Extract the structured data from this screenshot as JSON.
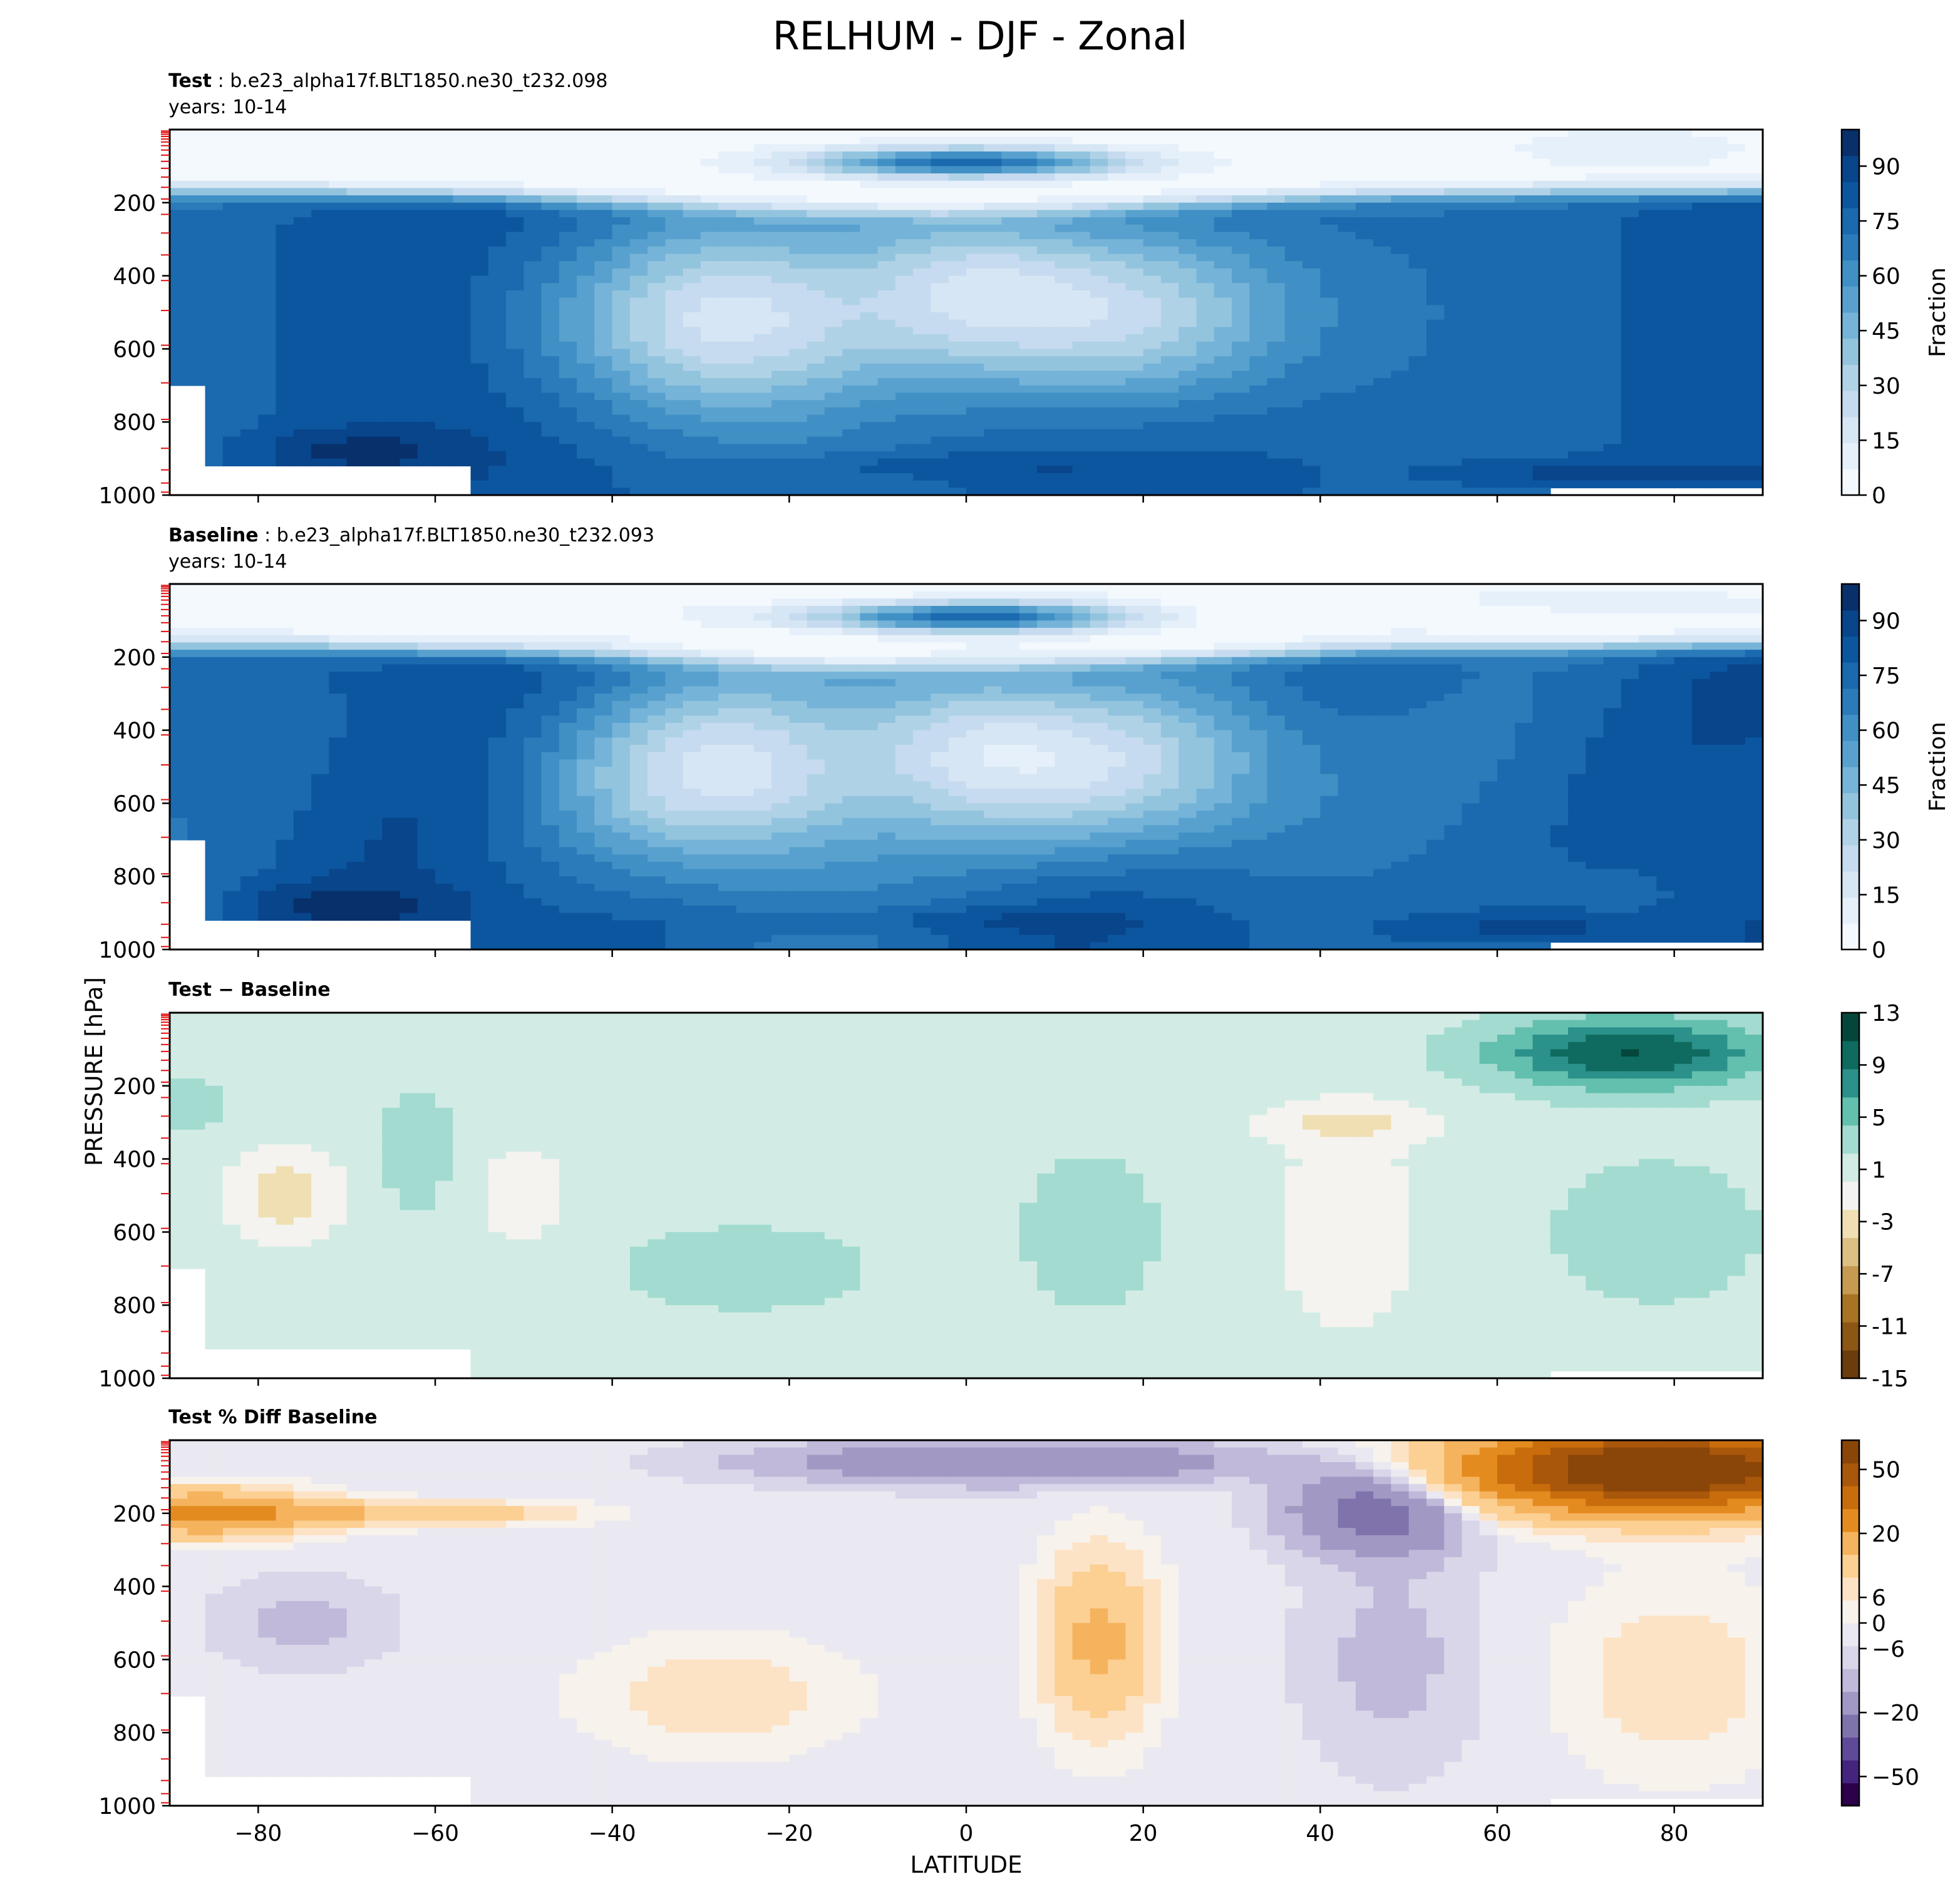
{
  "figure": {
    "title": "RELHUM - DJF - Zonal",
    "ylabel": "PRESSURE [hPa]",
    "xlabel": "LATITUDE"
  },
  "chart_data": [
    {
      "type": "contour",
      "name": "test",
      "title_bold": "Test",
      "title_rest": " : b.e23_alpha17f.BLT1850.ne30_t232.098",
      "subtitle": "years: 10-14",
      "xlim": [
        -90,
        90
      ],
      "ylim": [
        1000,
        0
      ],
      "x_ticks": [
        -80,
        -60,
        -40,
        -20,
        0,
        20,
        40,
        60,
        80
      ],
      "x_tick_labels_shown": false,
      "y_ticks": [
        200,
        400,
        600,
        800,
        1000
      ],
      "colormap": "Blues",
      "colorbar": {
        "label": "Fraction",
        "ticks": [
          0,
          15,
          30,
          45,
          60,
          75,
          90
        ],
        "range": [
          0,
          100
        ],
        "colors": [
          "#f4f9fe",
          "#e6f0fa",
          "#d6e6f4",
          "#c6dbef",
          "#b0d2e7",
          "#93c4de",
          "#75b4d8",
          "#58a1cf",
          "#4090c5",
          "#2b7bba",
          "#1b69af",
          "#0c56a0",
          "#08458a",
          "#08306b"
        ]
      }
    },
    {
      "type": "contour",
      "name": "baseline",
      "title_bold": "Baseline",
      "title_rest": " : b.e23_alpha17f.BLT1850.ne30_t232.093",
      "subtitle": "years: 10-14",
      "xlim": [
        -90,
        90
      ],
      "ylim": [
        1000,
        0
      ],
      "x_ticks": [
        -80,
        -60,
        -40,
        -20,
        0,
        20,
        40,
        60,
        80
      ],
      "x_tick_labels_shown": false,
      "y_ticks": [
        200,
        400,
        600,
        800,
        1000
      ],
      "colormap": "Blues",
      "colorbar": {
        "label": "Fraction",
        "ticks": [
          0,
          15,
          30,
          45,
          60,
          75,
          90
        ],
        "range": [
          0,
          100
        ],
        "colors": [
          "#f4f9fe",
          "#e6f0fa",
          "#d6e6f4",
          "#c6dbef",
          "#b0d2e7",
          "#93c4de",
          "#75b4d8",
          "#58a1cf",
          "#4090c5",
          "#2b7bba",
          "#1b69af",
          "#0c56a0",
          "#08458a",
          "#08306b"
        ]
      }
    },
    {
      "type": "contour",
      "name": "difference",
      "title_bold": "Test − Baseline",
      "title_rest": "",
      "subtitle": "",
      "xlim": [
        -90,
        90
      ],
      "ylim": [
        1000,
        0
      ],
      "x_ticks": [
        -80,
        -60,
        -40,
        -20,
        0,
        20,
        40,
        60,
        80
      ],
      "x_tick_labels_shown": false,
      "y_ticks": [
        200,
        400,
        600,
        800,
        1000
      ],
      "colormap": "BrBG",
      "colorbar": {
        "label": "",
        "ticks": [
          -15,
          -11,
          -7,
          -3,
          1,
          5,
          9,
          13
        ],
        "range": [
          -15,
          13
        ],
        "colors": [
          "#6b3d0c",
          "#8c5614",
          "#a87424",
          "#c69a50",
          "#dcc083",
          "#efdfb3",
          "#f4f3ef",
          "#d2ece5",
          "#a3dbd0",
          "#63bfae",
          "#2b918a",
          "#0f6b5f",
          "#05463b"
        ]
      }
    },
    {
      "type": "contour",
      "name": "percent-diff",
      "title_bold": "Test % Diff Baseline",
      "title_rest": "",
      "subtitle": "",
      "xlim": [
        -90,
        90
      ],
      "ylim": [
        1000,
        0
      ],
      "x_ticks": [
        -80,
        -60,
        -40,
        -20,
        0,
        20,
        40,
        60,
        80
      ],
      "x_tick_labels": [
        "−80",
        "−60",
        "−40",
        "−20",
        "0",
        "20",
        "40",
        "60",
        "80"
      ],
      "x_tick_labels_shown": true,
      "y_ticks": [
        200,
        400,
        600,
        800,
        1000
      ],
      "colormap": "PuOr_r",
      "colorbar": {
        "label": "",
        "ticks": [
          -50,
          -20,
          -6,
          0,
          6,
          20,
          50
        ],
        "tick_labels": [
          "−50",
          "−20",
          "−6",
          "0",
          "6",
          "20",
          "50"
        ],
        "colors": [
          "#2d004b",
          "#452480",
          "#5e4a99",
          "#8073ac",
          "#a199c4",
          "#c0b9d9",
          "#d9d6ea",
          "#eae9f1",
          "#f7f2ec",
          "#fde3c5",
          "#fccf92",
          "#f5b35e",
          "#e48b1f",
          "#c96d0c",
          "#a9570b",
          "#8a4508"
        ]
      }
    }
  ]
}
